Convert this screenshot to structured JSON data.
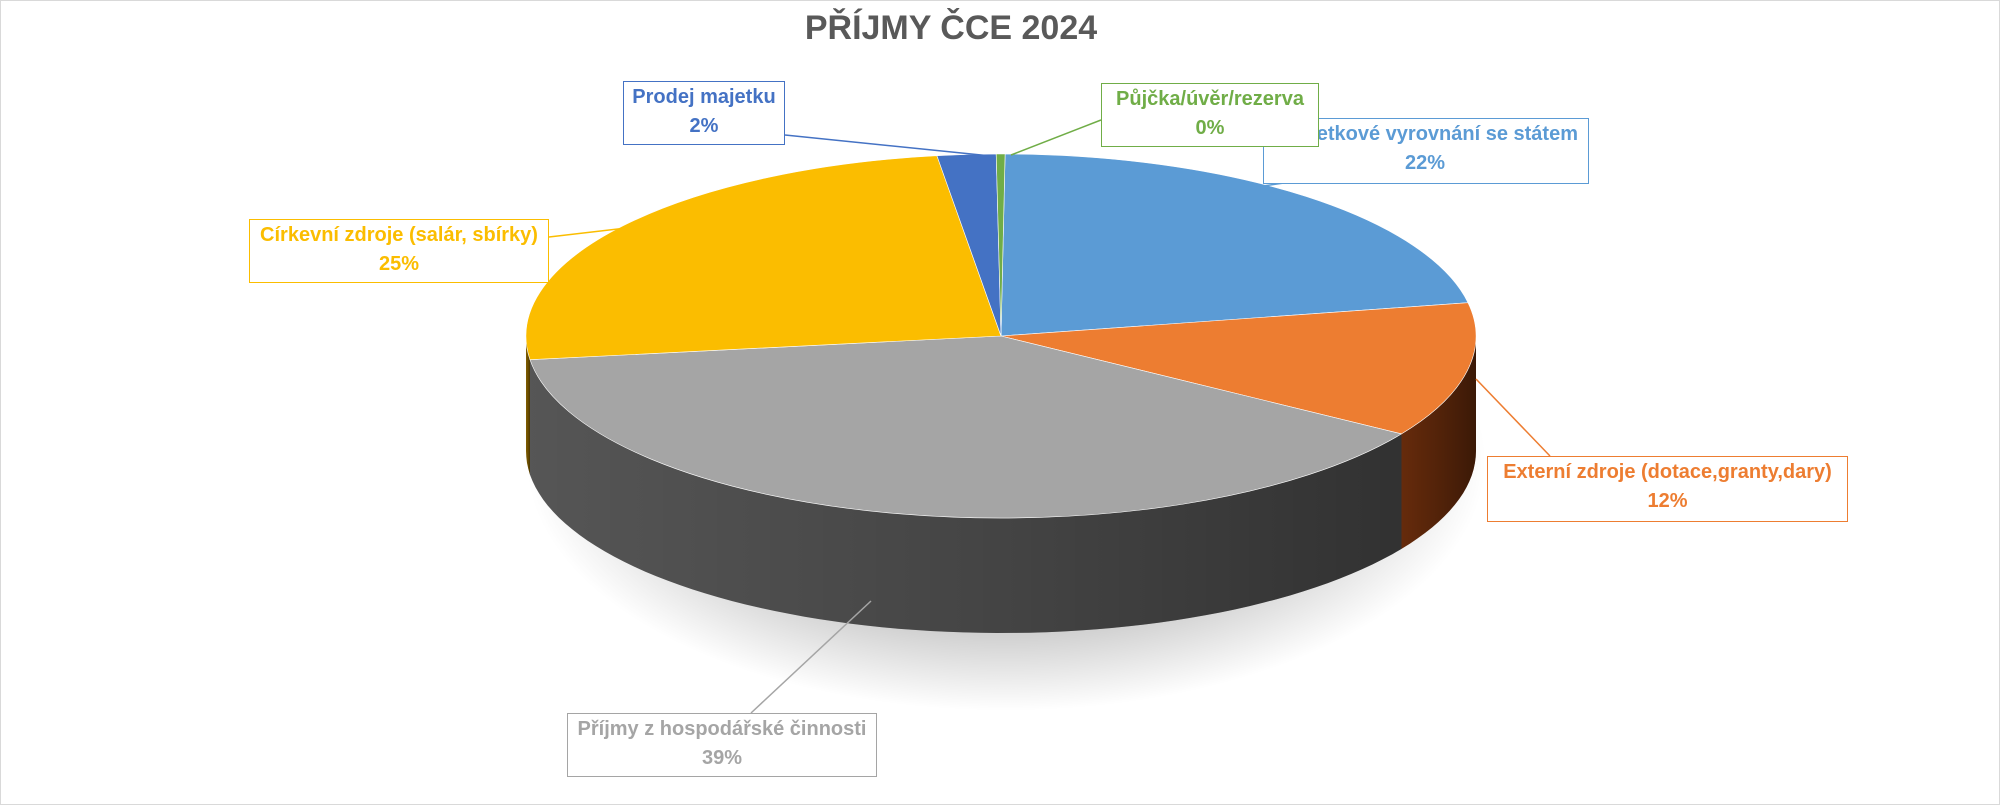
{
  "chart_data": {
    "type": "pie",
    "title": "PŘÍJMY ČCE 2024",
    "style": "3d",
    "slices": [
      {
        "label": "Restituční a majetkové vyrovnání se státem",
        "label_visible": "etkové vyrovnání se státem",
        "value": 22,
        "value_label": "22%",
        "color": "#5b9bd5",
        "side_color": "#2e5f8f"
      },
      {
        "label": "Externí zdroje (dotace,granty,dary)",
        "value": 12,
        "value_label": "12%",
        "color": "#ed7d31",
        "side_color": "#6b2d0c"
      },
      {
        "label": "Příjmy z hospodářské činnosti",
        "value": 39,
        "value_label": "39%",
        "color": "#a5a5a5",
        "side_color": "#5a5a5a"
      },
      {
        "label": "Církevní zdroje (salár, sbírky)",
        "value": 25,
        "value_label": "25%",
        "color": "#fbbd00",
        "side_color": "#8a6400"
      },
      {
        "label": "Prodej majetku",
        "value": 2,
        "value_label": "2%",
        "color": "#4472c4",
        "side_color": "#22396a"
      },
      {
        "label": "Půjčka/úvěr/rezerva",
        "value": 0.3,
        "value_label": "0%",
        "color": "#70ad47",
        "side_color": "#3a5e23"
      }
    ]
  }
}
